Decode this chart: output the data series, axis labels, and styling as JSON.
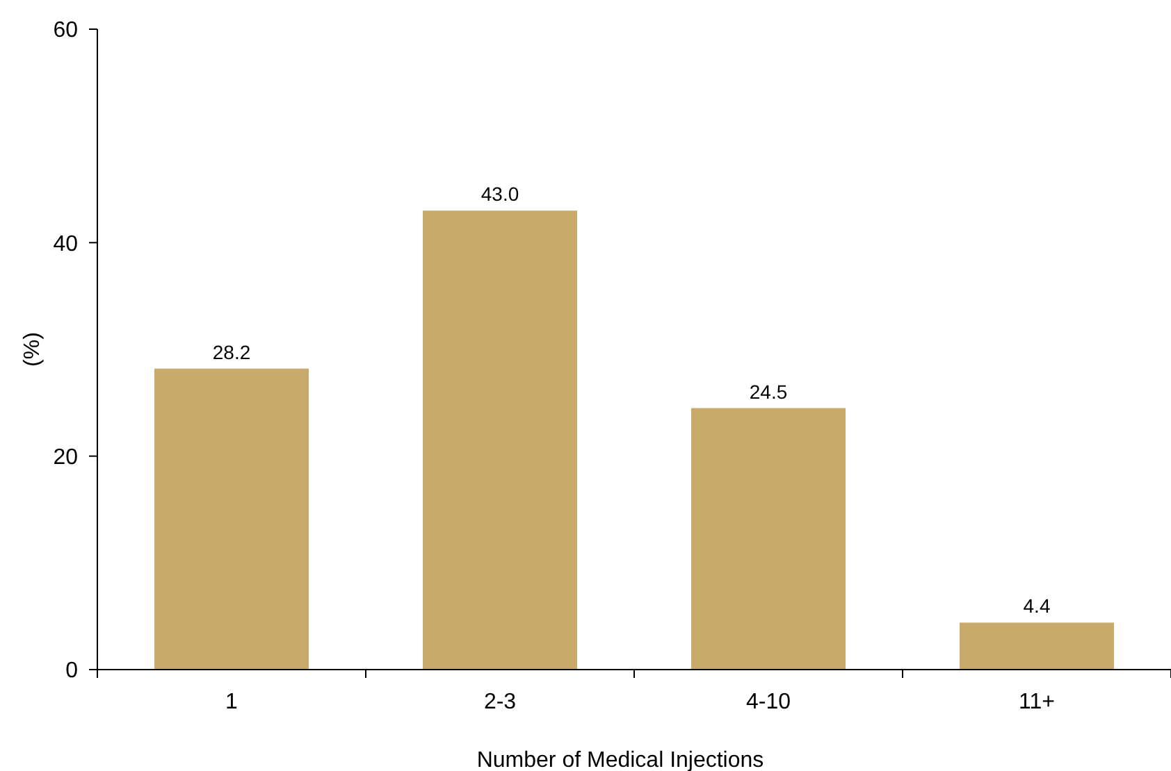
{
  "chart_data": {
    "type": "bar",
    "xlabel": "Number of Medical Injections",
    "ylabel": "(%)",
    "categories": [
      "1",
      "2-3",
      "4-10",
      "11+"
    ],
    "values": [
      28.2,
      43.0,
      24.5,
      4.4
    ],
    "value_labels": [
      "28.2",
      "43.0",
      "24.5",
      "4.4"
    ],
    "color": "#c8aa6a",
    "ylim": [
      0,
      60
    ],
    "yticks": [
      0,
      20,
      40,
      60
    ],
    "grid": false
  }
}
